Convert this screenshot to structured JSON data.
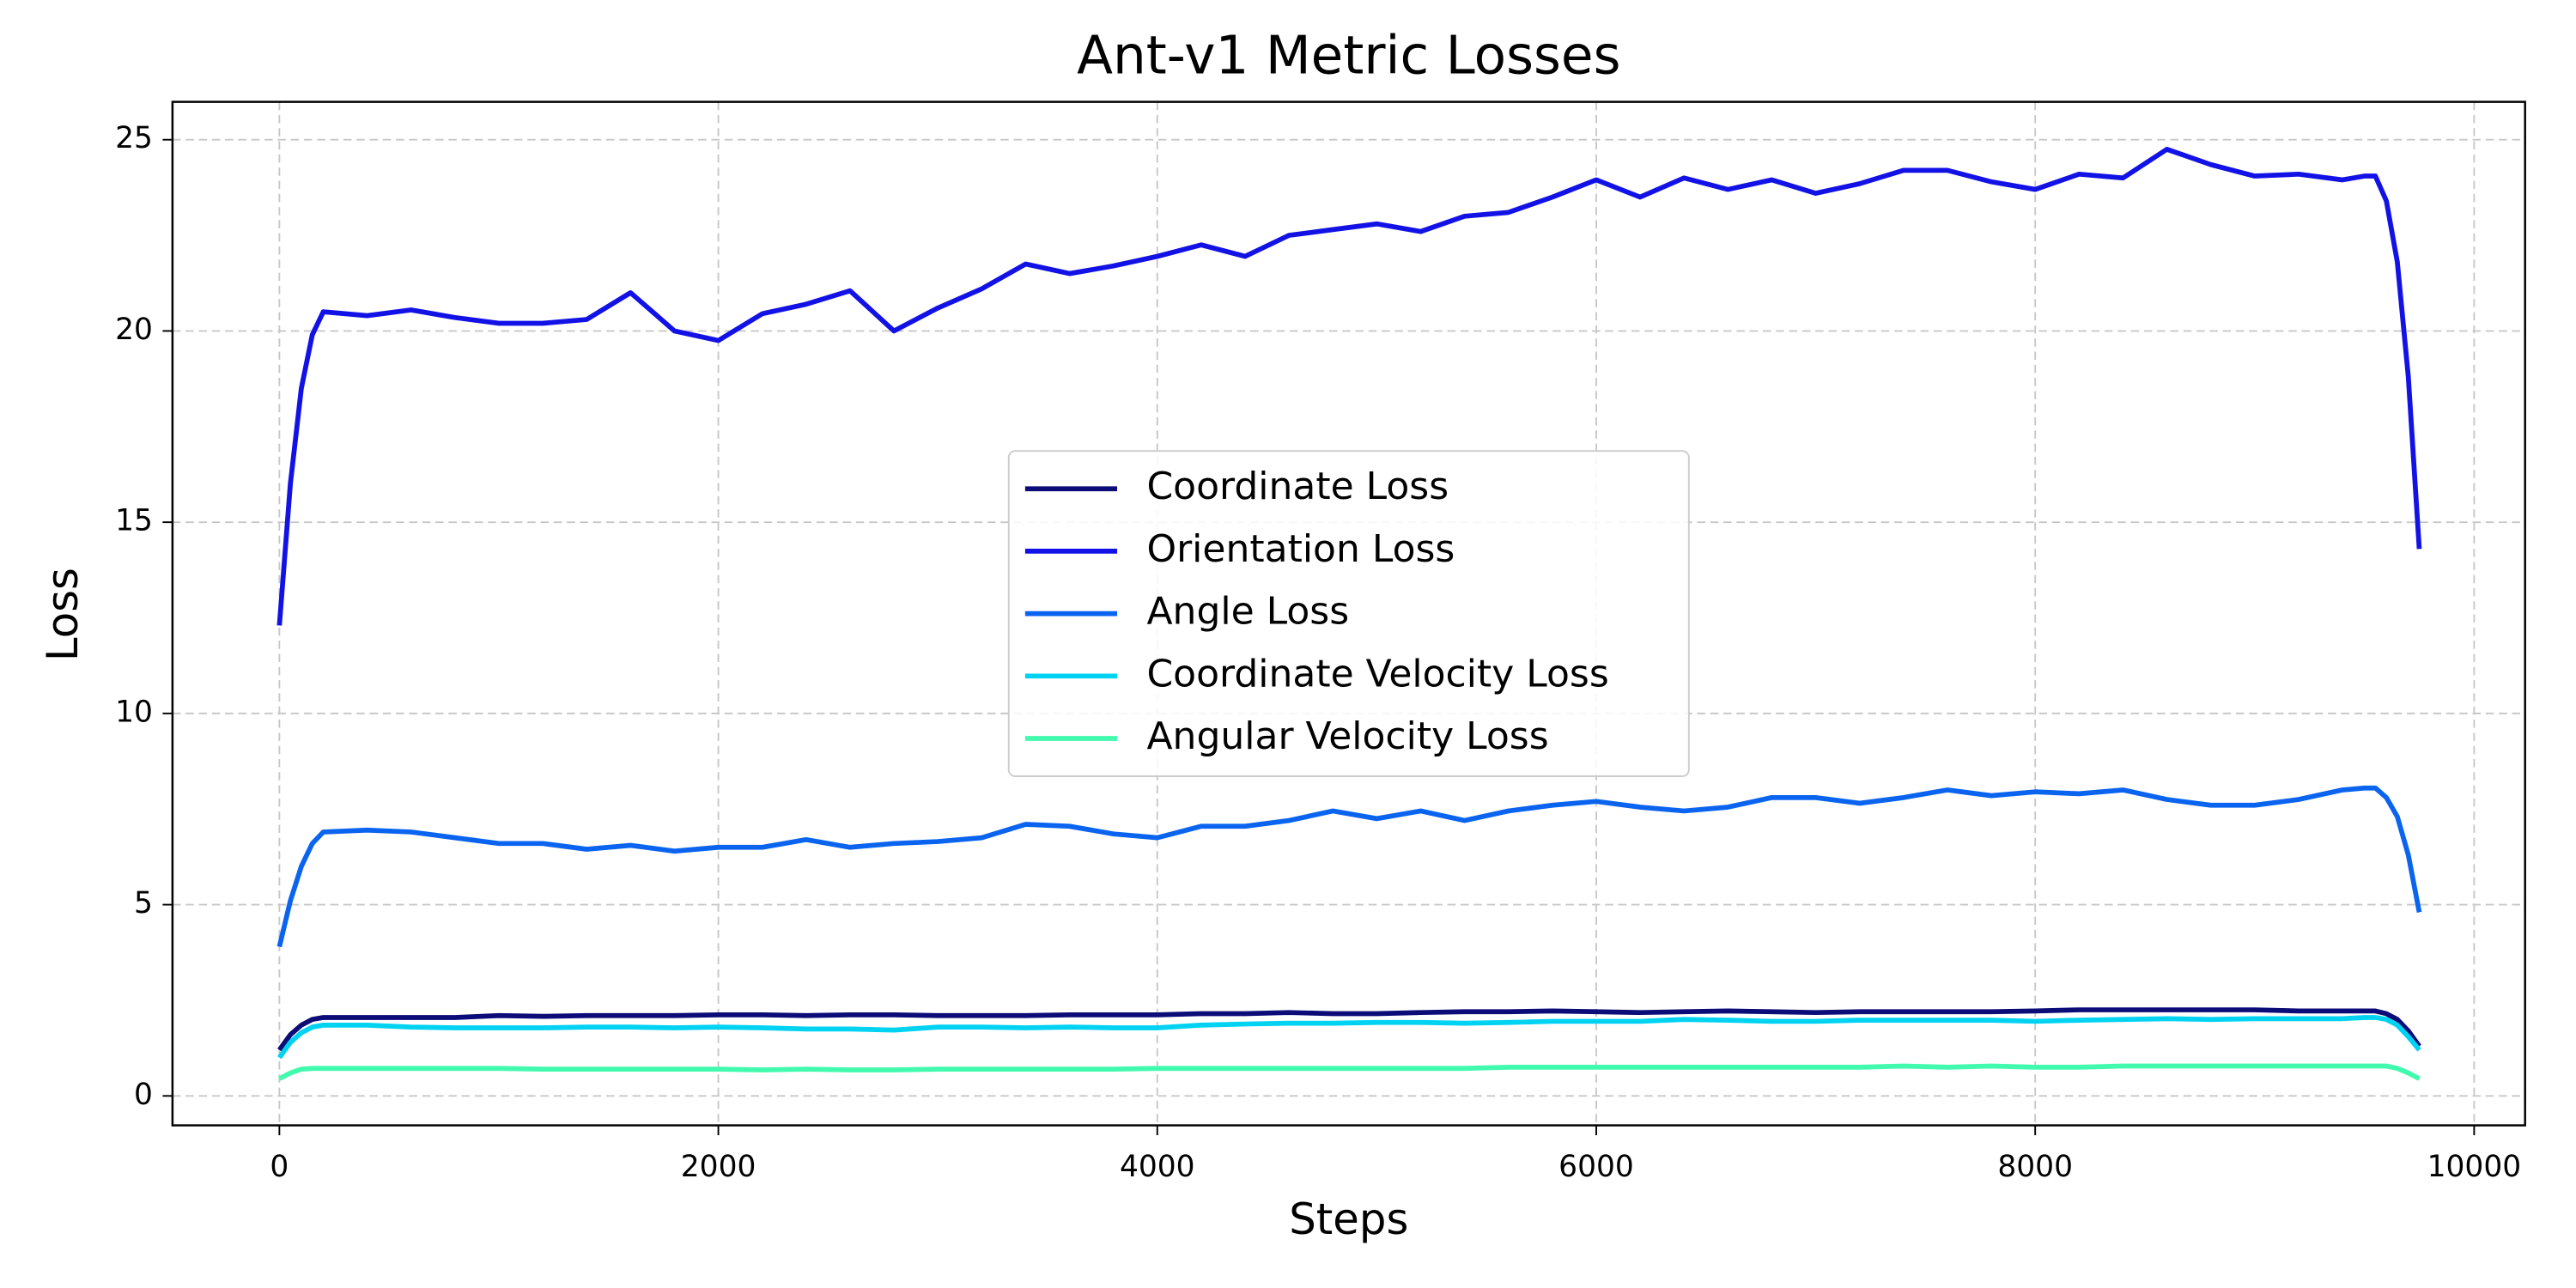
{
  "chart_data": {
    "type": "line",
    "title": "Ant-v1 Metric Losses",
    "xlabel": "Steps",
    "ylabel": "Loss",
    "x": [
      0,
      50,
      100,
      150,
      200,
      400,
      600,
      800,
      1000,
      1200,
      1400,
      1600,
      1800,
      2000,
      2200,
      2400,
      2600,
      2800,
      3000,
      3200,
      3400,
      3600,
      3800,
      4000,
      4200,
      4400,
      4600,
      4800,
      5000,
      5200,
      5400,
      5600,
      5800,
      6000,
      6200,
      6400,
      6600,
      6800,
      7000,
      7200,
      7400,
      7600,
      7800,
      8000,
      8200,
      8400,
      8600,
      8800,
      9000,
      9200,
      9400,
      9500,
      9550,
      9600,
      9650,
      9700,
      9750
    ],
    "series": [
      {
        "name": "Coordinate Loss",
        "color": "#0c0c78",
        "values": [
          1.2,
          1.6,
          1.85,
          2.0,
          2.05,
          2.05,
          2.05,
          2.05,
          2.1,
          2.08,
          2.1,
          2.1,
          2.1,
          2.12,
          2.12,
          2.1,
          2.12,
          2.12,
          2.1,
          2.1,
          2.1,
          2.12,
          2.12,
          2.12,
          2.15,
          2.15,
          2.18,
          2.15,
          2.15,
          2.18,
          2.2,
          2.2,
          2.22,
          2.2,
          2.18,
          2.2,
          2.22,
          2.2,
          2.18,
          2.2,
          2.2,
          2.2,
          2.2,
          2.22,
          2.25,
          2.25,
          2.25,
          2.25,
          2.25,
          2.22,
          2.22,
          2.22,
          2.22,
          2.15,
          2.0,
          1.7,
          1.3
        ]
      },
      {
        "name": "Orientation Loss",
        "color": "#1212e6",
        "values": [
          12.3,
          16,
          18.5,
          19.9,
          20.5,
          20.4,
          20.55,
          20.35,
          20.2,
          20.2,
          20.3,
          21.0,
          20.0,
          19.75,
          20.45,
          20.7,
          21.05,
          20.0,
          20.6,
          21.1,
          21.75,
          21.5,
          21.7,
          21.95,
          22.25,
          21.95,
          22.5,
          22.65,
          22.8,
          22.6,
          23.0,
          23.1,
          23.5,
          23.95,
          23.5,
          24.0,
          23.7,
          23.95,
          23.6,
          23.85,
          24.2,
          24.2,
          23.9,
          23.7,
          24.1,
          24.0,
          24.75,
          24.35,
          24.05,
          24.1,
          23.95,
          24.05,
          24.05,
          23.4,
          21.8,
          18.8,
          14.3
        ]
      },
      {
        "name": "Angle Loss",
        "color": "#0a64f0",
        "values": [
          3.9,
          5.1,
          6.0,
          6.6,
          6.9,
          6.95,
          6.9,
          6.75,
          6.6,
          6.6,
          6.45,
          6.55,
          6.4,
          6.5,
          6.5,
          6.7,
          6.5,
          6.6,
          6.65,
          6.75,
          7.1,
          7.05,
          6.85,
          6.75,
          7.05,
          7.05,
          7.2,
          7.45,
          7.25,
          7.45,
          7.2,
          7.45,
          7.6,
          7.7,
          7.55,
          7.45,
          7.55,
          7.8,
          7.8,
          7.65,
          7.8,
          8.0,
          7.85,
          7.95,
          7.9,
          8.0,
          7.75,
          7.6,
          7.6,
          7.75,
          8.0,
          8.05,
          8.05,
          7.8,
          7.3,
          6.3,
          4.8
        ]
      },
      {
        "name": "Coordinate Velocity Loss",
        "color": "#00d2f2",
        "values": [
          1.0,
          1.4,
          1.65,
          1.8,
          1.85,
          1.85,
          1.8,
          1.78,
          1.78,
          1.78,
          1.8,
          1.8,
          1.78,
          1.8,
          1.78,
          1.75,
          1.75,
          1.72,
          1.8,
          1.8,
          1.78,
          1.8,
          1.78,
          1.78,
          1.85,
          1.88,
          1.9,
          1.9,
          1.92,
          1.92,
          1.9,
          1.92,
          1.95,
          1.95,
          1.95,
          2.0,
          1.98,
          1.95,
          1.95,
          1.98,
          1.98,
          1.98,
          1.98,
          1.95,
          1.98,
          2.0,
          2.02,
          2.0,
          2.02,
          2.02,
          2.02,
          2.05,
          2.05,
          2.0,
          1.85,
          1.55,
          1.2
        ]
      },
      {
        "name": "Angular Velocity Loss",
        "color": "#42faae",
        "values": [
          0.45,
          0.6,
          0.7,
          0.72,
          0.72,
          0.72,
          0.72,
          0.72,
          0.72,
          0.7,
          0.7,
          0.7,
          0.7,
          0.7,
          0.68,
          0.7,
          0.68,
          0.68,
          0.7,
          0.7,
          0.7,
          0.7,
          0.7,
          0.72,
          0.72,
          0.72,
          0.72,
          0.72,
          0.72,
          0.72,
          0.72,
          0.75,
          0.75,
          0.75,
          0.75,
          0.75,
          0.75,
          0.75,
          0.75,
          0.75,
          0.78,
          0.75,
          0.78,
          0.75,
          0.75,
          0.78,
          0.78,
          0.78,
          0.78,
          0.78,
          0.78,
          0.78,
          0.78,
          0.78,
          0.72,
          0.6,
          0.45
        ]
      }
    ],
    "xlim": [
      -487,
      10232
    ],
    "ylim": [
      -0.77,
      25.99
    ],
    "xticks": [
      0,
      2000,
      4000,
      6000,
      8000,
      10000
    ],
    "yticks": [
      0,
      5,
      10,
      15,
      20,
      25
    ],
    "grid": true,
    "legend_loc": "center"
  }
}
